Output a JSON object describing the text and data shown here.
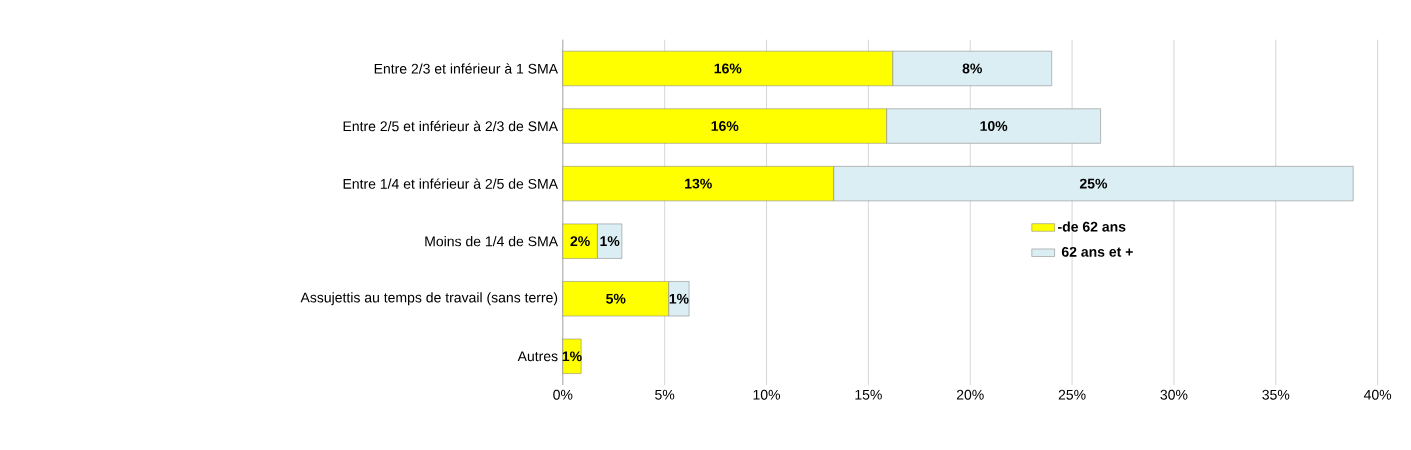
{
  "chart_data": {
    "type": "bar",
    "orientation": "horizontal",
    "stacked": true,
    "categories": [
      "Entre 2/3 et inférieur à 1 SMA",
      "Entre 2/5 et inférieur à 2/3 de SMA",
      "Entre 1/4 et inférieur à 2/5 de SMA",
      "Moins de 1/4 de SMA",
      "Assujettis au temps de travail (sans terre)",
      "Autres"
    ],
    "series": [
      {
        "name": "-de 62 ans",
        "color": "#ffff00",
        "values": [
          16.2,
          15.9,
          13.3,
          1.7,
          5.2,
          0.9
        ],
        "value_labels": [
          "16%",
          "16%",
          "13%",
          "2%",
          "5%",
          "1%"
        ]
      },
      {
        "name": " 62 ans et +",
        "color": "#dbeef4",
        "values": [
          7.8,
          10.5,
          25.5,
          1.2,
          1.0,
          null
        ],
        "value_labels": [
          "8%",
          "10%",
          "25%",
          "1%",
          "1%",
          null
        ]
      }
    ],
    "xlim": [
      0,
      40
    ],
    "xticks": [
      {
        "value": 0,
        "label": "0%"
      },
      {
        "value": 5,
        "label": "5%"
      },
      {
        "value": 10,
        "label": "10%"
      },
      {
        "value": 15,
        "label": "15%"
      },
      {
        "value": 20,
        "label": "20%"
      },
      {
        "value": 25,
        "label": "25%"
      },
      {
        "value": 30,
        "label": "30%"
      },
      {
        "value": 35,
        "label": "35%"
      },
      {
        "value": 40,
        "label": "40%"
      }
    ],
    "grid": "x",
    "legend": "right"
  }
}
